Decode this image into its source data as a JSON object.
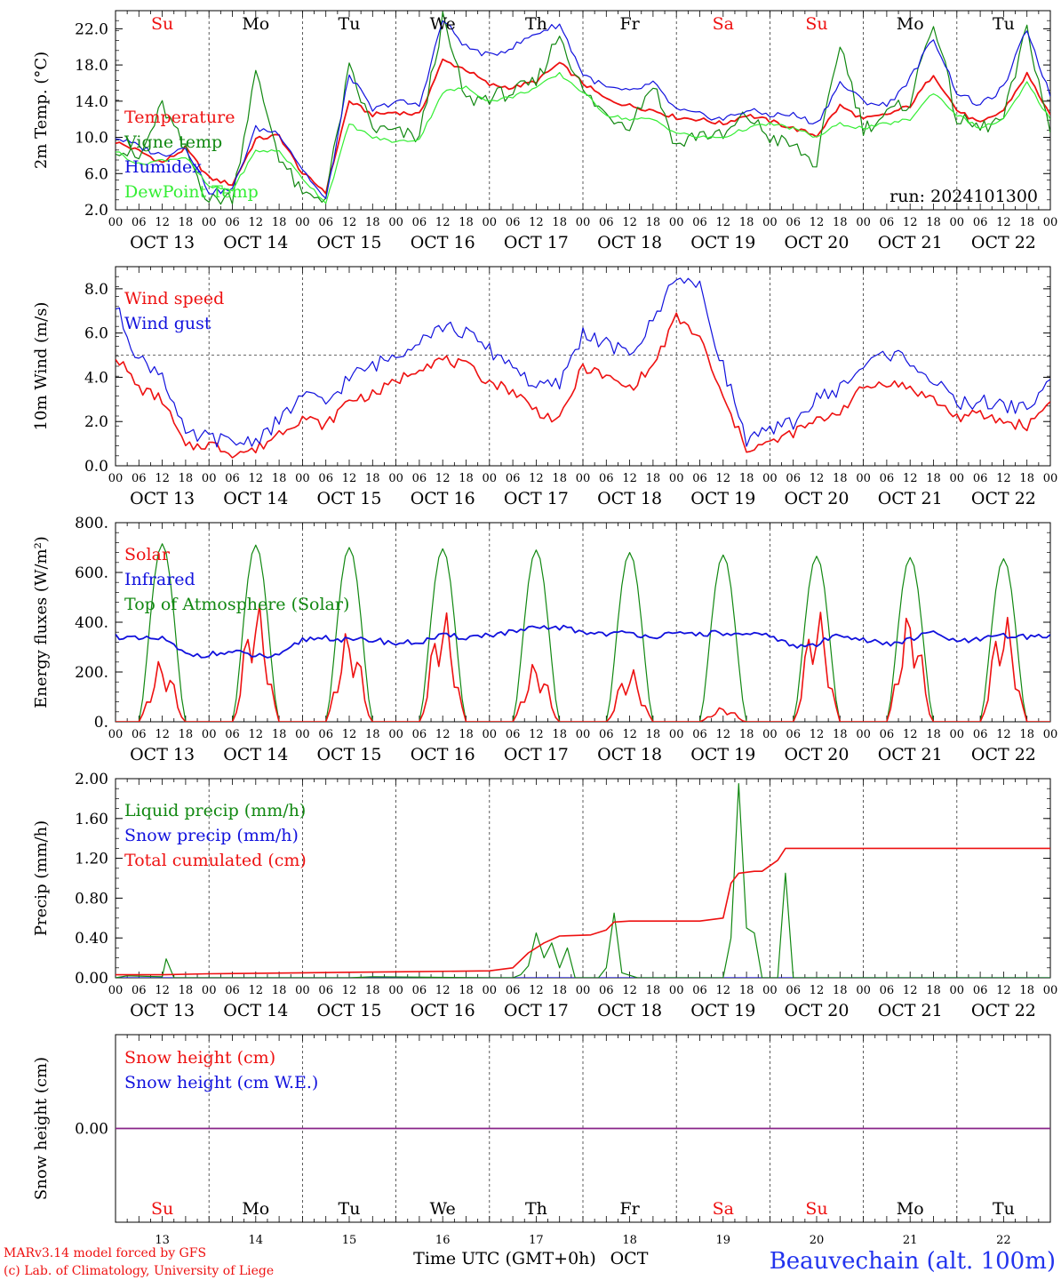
{
  "colors": {
    "red": "#ee1111",
    "green": "#118811",
    "blue": "#1111dd",
    "lightgreen": "#33ee33",
    "purple": "#882288",
    "axis": "#000000",
    "title_blue": "#2233ee"
  },
  "days": [
    "Su",
    "Mo",
    "Tu",
    "We",
    "Th",
    "Fr",
    "Sa",
    "Su",
    "Mo",
    "Tu"
  ],
  "day_colors": [
    "red",
    "black",
    "black",
    "black",
    "black",
    "black",
    "red",
    "red",
    "black",
    "black"
  ],
  "dates": [
    "OCT 13",
    "OCT 14",
    "OCT 15",
    "OCT 16",
    "OCT 17",
    "OCT 18",
    "OCT 19",
    "OCT 20",
    "OCT 21",
    "OCT 22"
  ],
  "date_numbers": [
    "13",
    "14",
    "15",
    "16",
    "17",
    "18",
    "19",
    "20",
    "21",
    "22"
  ],
  "hour_ticks": [
    "00",
    "06",
    "12",
    "18"
  ],
  "final_hour": "00",
  "run_label": "run: 2024101300",
  "xlabel": "Time UTC (GMT+0h)",
  "month": "OCT",
  "footer": {
    "line1": "MARv3.14 model forced by GFS",
    "line2": "(c) Lab. of Climatology, University of Liege",
    "station": "Beauvechain (alt. 100m)"
  },
  "chart_data": [
    {
      "type": "line",
      "ylabel": "2m Temp. (°C)",
      "ylim": [
        2,
        24
      ],
      "yticks": [
        "2.0",
        "6.0",
        "10.0",
        "14.0",
        "18.0",
        "22.0"
      ],
      "x": [
        0,
        6,
        12,
        18,
        24,
        30,
        36,
        42,
        48,
        54,
        60,
        66,
        72,
        78,
        84,
        90,
        96,
        102,
        108,
        114,
        120,
        126,
        132,
        138,
        144,
        150,
        156,
        162,
        168,
        174,
        180,
        186,
        192,
        198,
        204,
        210,
        216,
        222,
        228,
        234,
        240
      ],
      "series": [
        {
          "name": "Temperature",
          "color": "red",
          "values": [
            9.5,
            8.5,
            7.2,
            8.8,
            5.5,
            4.8,
            9.8,
            10.2,
            6.0,
            4.0,
            14.0,
            12.5,
            12.8,
            12.5,
            18.5,
            17.5,
            15.8,
            15.5,
            16.2,
            18.2,
            16.0,
            14.2,
            13.5,
            13.0,
            12.2,
            12.0,
            11.5,
            12.5,
            11.8,
            11.0,
            10.2,
            13.5,
            12.0,
            12.5,
            13.5,
            17.0,
            13.0,
            11.5,
            13.0,
            17.0,
            12.5
          ]
        },
        {
          "name": "Vigne temp",
          "color": "green",
          "values": [
            9.0,
            7.5,
            13.5,
            8.5,
            3.0,
            3.5,
            17.0,
            8.0,
            3.5,
            3.5,
            17.5,
            11.0,
            10.5,
            10.0,
            23.0,
            14.0,
            14.5,
            15.0,
            16.0,
            21.5,
            15.0,
            12.5,
            11.5,
            16.0,
            9.0,
            10.5,
            10.0,
            12.5,
            10.0,
            9.0,
            7.0,
            20.5,
            11.0,
            12.5,
            14.0,
            23.0,
            12.0,
            11.0,
            12.0,
            22.0,
            10.5
          ]
        },
        {
          "name": "Humidex",
          "color": "blue",
          "values": [
            10.0,
            9.0,
            8.0,
            9.0,
            4.0,
            4.2,
            11.0,
            10.5,
            6.5,
            3.0,
            17.0,
            13.0,
            14.0,
            13.5,
            23.0,
            20.0,
            19.0,
            20.0,
            21.5,
            22.5,
            17.0,
            15.5,
            15.0,
            16.0,
            13.0,
            12.5,
            12.0,
            13.0,
            12.5,
            12.5,
            11.5,
            16.0,
            14.0,
            13.5,
            16.5,
            21.0,
            15.0,
            13.5,
            15.5,
            22.0,
            14.5
          ]
        },
        {
          "name": "DewPoint Temp",
          "color": "lightgreen",
          "values": [
            8.5,
            7.0,
            7.5,
            7.8,
            4.5,
            4.2,
            8.5,
            8.5,
            5.5,
            2.8,
            11.5,
            10.0,
            9.5,
            9.8,
            15.0,
            15.5,
            14.0,
            14.5,
            15.5,
            17.0,
            15.0,
            12.5,
            12.0,
            12.0,
            10.5,
            10.0,
            10.0,
            11.0,
            11.5,
            11.0,
            10.0,
            11.5,
            11.0,
            11.5,
            12.0,
            15.0,
            12.5,
            11.0,
            12.0,
            16.0,
            12.0
          ]
        }
      ]
    },
    {
      "type": "line",
      "ylabel": "10m Wind (m/s)",
      "ylim": [
        0,
        9
      ],
      "yticks": [
        "0.0",
        "2.0",
        "4.0",
        "6.0",
        "8.0"
      ],
      "reference_line": 5.0,
      "x": [
        0,
        6,
        12,
        18,
        24,
        30,
        36,
        42,
        48,
        54,
        60,
        66,
        72,
        78,
        84,
        90,
        96,
        102,
        108,
        114,
        120,
        126,
        132,
        138,
        144,
        150,
        156,
        162,
        168,
        174,
        180,
        186,
        192,
        198,
        204,
        210,
        216,
        222,
        228,
        234,
        240
      ],
      "series": [
        {
          "name": "Wind speed",
          "color": "red",
          "values": [
            5.0,
            3.5,
            3.0,
            0.8,
            1.0,
            0.6,
            0.7,
            1.5,
            2.2,
            1.8,
            3.0,
            3.2,
            3.8,
            4.5,
            4.8,
            4.5,
            3.8,
            3.4,
            2.5,
            2.0,
            4.5,
            4.0,
            3.5,
            4.5,
            6.7,
            5.8,
            3.0,
            0.8,
            1.0,
            1.5,
            2.0,
            2.5,
            3.5,
            3.8,
            3.5,
            3.0,
            2.2,
            2.3,
            2.0,
            1.8,
            2.9
          ]
        },
        {
          "name": "Wind gust",
          "color": "blue",
          "values": [
            7.2,
            4.8,
            4.2,
            1.3,
            1.3,
            1.0,
            1.2,
            2.0,
            3.2,
            2.8,
            4.0,
            4.5,
            5.0,
            5.8,
            6.3,
            6.0,
            5.2,
            4.6,
            3.5,
            3.7,
            6.0,
            5.5,
            5.0,
            6.5,
            8.7,
            8.0,
            4.5,
            1.2,
            1.5,
            2.0,
            3.0,
            3.5,
            4.5,
            5.1,
            4.8,
            3.8,
            2.8,
            2.9,
            2.7,
            2.6,
            3.9
          ]
        }
      ]
    },
    {
      "type": "line",
      "ylabel": "Energy fluxes (W/m²)",
      "ylim": [
        0,
        800
      ],
      "yticks": [
        "0.",
        "200.",
        "400.",
        "600.",
        "800."
      ],
      "days": 10,
      "series": [
        {
          "name": "Solar",
          "color": "red",
          "daily_peak": [
            255,
            495,
            375,
            460,
            245,
            220,
            60,
            465,
            450,
            445
          ]
        },
        {
          "name": "Infrared",
          "color": "blue",
          "x": [
            0,
            6,
            12,
            18,
            24,
            30,
            36,
            42,
            48,
            54,
            60,
            66,
            72,
            78,
            84,
            90,
            96,
            102,
            108,
            114,
            120,
            126,
            132,
            138,
            144,
            150,
            156,
            162,
            168,
            174,
            180,
            186,
            192,
            198,
            204,
            210,
            216,
            222,
            228,
            234,
            240
          ],
          "values": [
            345,
            330,
            335,
            270,
            270,
            280,
            265,
            260,
            330,
            340,
            325,
            330,
            315,
            320,
            345,
            340,
            350,
            360,
            375,
            380,
            360,
            355,
            355,
            345,
            350,
            355,
            355,
            345,
            350,
            300,
            310,
            355,
            330,
            310,
            330,
            360,
            320,
            330,
            345,
            340,
            350
          ]
        },
        {
          "name": "Top of Atmosphere (Solar)",
          "color": "green",
          "daily_peak": [
            715,
            710,
            700,
            695,
            690,
            680,
            670,
            665,
            660,
            655
          ]
        }
      ]
    },
    {
      "type": "line",
      "ylabel": "Precip (mm/h)",
      "ylim": [
        0,
        2
      ],
      "yticks": [
        "0.00",
        "0.40",
        "0.80",
        "1.20",
        "1.60",
        "2.00"
      ],
      "series": [
        {
          "name": "Liquid precip (mm/h)",
          "color": "green",
          "points": [
            [
              0,
              0
            ],
            [
              3,
              0.02
            ],
            [
              12,
              0.01
            ],
            [
              13,
              0.19
            ],
            [
              15,
              0
            ],
            [
              60,
              0
            ],
            [
              66,
              0.01
            ],
            [
              96,
              0
            ],
            [
              102,
              0
            ],
            [
              104,
              0.03
            ],
            [
              106,
              0.12
            ],
            [
              108,
              0.45
            ],
            [
              110,
              0.2
            ],
            [
              112,
              0.35
            ],
            [
              114,
              0.1
            ],
            [
              116,
              0.3
            ],
            [
              118,
              0
            ],
            [
              124,
              0
            ],
            [
              126,
              0.1
            ],
            [
              128,
              0.65
            ],
            [
              130,
              0.05
            ],
            [
              134,
              0
            ],
            [
              156,
              0
            ],
            [
              158,
              0.4
            ],
            [
              160,
              1.95
            ],
            [
              162,
              0.5
            ],
            [
              164,
              0.45
            ],
            [
              166,
              0
            ],
            [
              170,
              0
            ],
            [
              172,
              1.05
            ],
            [
              174,
              0
            ],
            [
              240,
              0
            ]
          ]
        },
        {
          "name": "Snow precip (mm/h)",
          "color": "blue",
          "points": [
            [
              0,
              0
            ],
            [
              240,
              0
            ]
          ]
        },
        {
          "name": "Total cumulated (cm)",
          "color": "red",
          "points": [
            [
              0,
              0.03
            ],
            [
              12,
              0.03
            ],
            [
              24,
              0.04
            ],
            [
              48,
              0.05
            ],
            [
              72,
              0.06
            ],
            [
              96,
              0.07
            ],
            [
              102,
              0.1
            ],
            [
              106,
              0.25
            ],
            [
              110,
              0.35
            ],
            [
              114,
              0.42
            ],
            [
              122,
              0.43
            ],
            [
              126,
              0.48
            ],
            [
              128,
              0.56
            ],
            [
              132,
              0.57
            ],
            [
              150,
              0.57
            ],
            [
              156,
              0.6
            ],
            [
              158,
              0.95
            ],
            [
              160,
              1.05
            ],
            [
              164,
              1.07
            ],
            [
              166,
              1.07
            ],
            [
              170,
              1.18
            ],
            [
              172,
              1.3
            ],
            [
              240,
              1.3
            ]
          ]
        }
      ]
    },
    {
      "type": "line",
      "ylabel": "Snow height (cm)",
      "yticks": [
        "0.00"
      ],
      "series": [
        {
          "name": "Snow height (cm)",
          "color": "red",
          "values": [
            0,
            0
          ]
        },
        {
          "name": "Snow height (cm W.E.)",
          "color": "blue",
          "values": [
            0,
            0
          ]
        }
      ]
    }
  ]
}
